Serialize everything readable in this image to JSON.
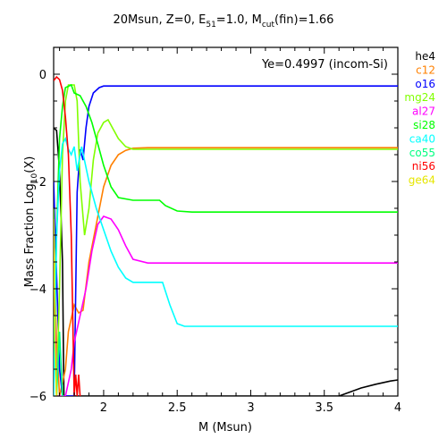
{
  "chart_data": {
    "type": "line",
    "title_main": "20Msun, Z=0, E",
    "title_e_sub": "51",
    "title_mid": "=1.0, M",
    "title_m_sub": "cut",
    "title_end": "(fin)=1.66",
    "annotation": "Ye=0.4997 (incom-Si)",
    "xlabel": "M (Msun)",
    "ylabel_main": "Mass Fraction Log",
    "ylabel_sub": "10",
    "ylabel_end": "(X)",
    "xlim": [
      1.66,
      4.0
    ],
    "ylim": [
      -6.0,
      0.5
    ],
    "x_ticks": [
      2,
      2.5,
      3,
      3.5,
      4
    ],
    "x_tick_labels": [
      "2",
      "2.5",
      "3",
      "3.5",
      "4"
    ],
    "y_ticks": [
      0,
      -2,
      -4,
      -6
    ],
    "y_tick_labels": [
      "0",
      "−2",
      "−4",
      "−6"
    ],
    "grid": false,
    "legend_position": "right",
    "series": [
      {
        "name": "he4",
        "color": "#000000",
        "points": [
          [
            1.66,
            -1.0
          ],
          [
            1.68,
            -1.05
          ],
          [
            1.7,
            -1.8
          ],
          [
            1.72,
            -3.5
          ],
          [
            1.73,
            -6.0
          ],
          [
            3.6,
            -6.0
          ],
          [
            3.65,
            -5.95
          ],
          [
            3.75,
            -5.85
          ],
          [
            3.85,
            -5.78
          ],
          [
            3.95,
            -5.72
          ],
          [
            4.0,
            -5.7
          ]
        ]
      },
      {
        "name": "c12",
        "color": "#ff8000",
        "points": [
          [
            1.66,
            -3.0
          ],
          [
            1.68,
            -5.0
          ],
          [
            1.7,
            -6.0
          ],
          [
            1.74,
            -5.5
          ],
          [
            1.76,
            -4.8
          ],
          [
            1.8,
            -4.3
          ],
          [
            1.83,
            -4.45
          ],
          [
            1.86,
            -4.4
          ],
          [
            1.9,
            -3.5
          ],
          [
            1.95,
            -2.8
          ],
          [
            2.0,
            -2.1
          ],
          [
            2.05,
            -1.7
          ],
          [
            2.1,
            -1.5
          ],
          [
            2.15,
            -1.42
          ],
          [
            2.2,
            -1.38
          ],
          [
            2.3,
            -1.37
          ],
          [
            2.5,
            -1.37
          ],
          [
            3.0,
            -1.37
          ],
          [
            4.0,
            -1.37
          ]
        ]
      },
      {
        "name": "o16",
        "color": "#0000ff",
        "points": [
          [
            1.66,
            -2.0
          ],
          [
            1.7,
            -5.5
          ],
          [
            1.72,
            -6.0
          ],
          [
            1.8,
            -6.0
          ],
          [
            1.82,
            -2.2
          ],
          [
            1.84,
            -1.4
          ],
          [
            1.86,
            -1.6
          ],
          [
            1.88,
            -1.0
          ],
          [
            1.9,
            -0.6
          ],
          [
            1.93,
            -0.35
          ],
          [
            1.97,
            -0.25
          ],
          [
            2.0,
            -0.22
          ],
          [
            2.1,
            -0.22
          ],
          [
            2.5,
            -0.22
          ],
          [
            4.0,
            -0.22
          ]
        ]
      },
      {
        "name": "mg24",
        "color": "#80ff00",
        "points": [
          [
            1.66,
            -2.5
          ],
          [
            1.68,
            -6.0
          ],
          [
            1.7,
            -4.0
          ],
          [
            1.72,
            -1.5
          ],
          [
            1.74,
            -0.5
          ],
          [
            1.76,
            -0.2
          ],
          [
            1.8,
            -0.2
          ],
          [
            1.82,
            -0.5
          ],
          [
            1.84,
            -2.0
          ],
          [
            1.87,
            -3.0
          ],
          [
            1.9,
            -2.5
          ],
          [
            1.93,
            -1.6
          ],
          [
            1.96,
            -1.1
          ],
          [
            2.0,
            -0.9
          ],
          [
            2.03,
            -0.85
          ],
          [
            2.06,
            -1.0
          ],
          [
            2.1,
            -1.2
          ],
          [
            2.15,
            -1.35
          ],
          [
            2.2,
            -1.4
          ],
          [
            2.5,
            -1.4
          ],
          [
            4.0,
            -1.4
          ]
        ]
      },
      {
        "name": "al27",
        "color": "#ff00ff",
        "points": [
          [
            1.66,
            -3.0
          ],
          [
            1.68,
            -6.0
          ],
          [
            1.74,
            -6.0
          ],
          [
            1.78,
            -5.5
          ],
          [
            1.8,
            -5.0
          ],
          [
            1.84,
            -4.5
          ],
          [
            1.88,
            -4.0
          ],
          [
            1.92,
            -3.3
          ],
          [
            1.96,
            -2.8
          ],
          [
            2.0,
            -2.65
          ],
          [
            2.05,
            -2.7
          ],
          [
            2.1,
            -2.9
          ],
          [
            2.15,
            -3.2
          ],
          [
            2.2,
            -3.45
          ],
          [
            2.3,
            -3.52
          ],
          [
            2.5,
            -3.52
          ],
          [
            4.0,
            -3.52
          ]
        ]
      },
      {
        "name": "si28",
        "color": "#00ff00",
        "points": [
          [
            1.66,
            -5.5
          ],
          [
            1.68,
            -3.0
          ],
          [
            1.7,
            -1.2
          ],
          [
            1.72,
            -0.6
          ],
          [
            1.74,
            -0.25
          ],
          [
            1.78,
            -0.2
          ],
          [
            1.8,
            -0.35
          ],
          [
            1.84,
            -0.4
          ],
          [
            1.88,
            -0.6
          ],
          [
            1.92,
            -0.9
          ],
          [
            1.96,
            -1.3
          ],
          [
            2.0,
            -1.7
          ],
          [
            2.05,
            -2.1
          ],
          [
            2.1,
            -2.3
          ],
          [
            2.2,
            -2.35
          ],
          [
            2.38,
            -2.35
          ],
          [
            2.42,
            -2.45
          ],
          [
            2.5,
            -2.55
          ],
          [
            2.6,
            -2.57
          ],
          [
            4.0,
            -2.57
          ]
        ]
      },
      {
        "name": "ca40",
        "color": "#00ffff",
        "points": [
          [
            1.66,
            -6.0
          ],
          [
            1.68,
            -3.0
          ],
          [
            1.7,
            -1.8
          ],
          [
            1.72,
            -1.3
          ],
          [
            1.74,
            -1.2
          ],
          [
            1.76,
            -1.4
          ],
          [
            1.78,
            -1.5
          ],
          [
            1.8,
            -1.35
          ],
          [
            1.82,
            -1.8
          ],
          [
            1.85,
            -1.35
          ],
          [
            1.9,
            -2.0
          ],
          [
            1.95,
            -2.5
          ],
          [
            2.0,
            -2.9
          ],
          [
            2.05,
            -3.3
          ],
          [
            2.1,
            -3.6
          ],
          [
            2.15,
            -3.8
          ],
          [
            2.2,
            -3.88
          ],
          [
            2.3,
            -3.88
          ],
          [
            2.4,
            -3.88
          ],
          [
            2.45,
            -4.3
          ],
          [
            2.5,
            -4.65
          ],
          [
            2.55,
            -4.7
          ],
          [
            4.0,
            -4.7
          ]
        ]
      },
      {
        "name": "co55",
        "color": "#00ff80",
        "points": [
          [
            1.66,
            -4.5
          ],
          [
            1.68,
            -6.0
          ],
          [
            1.7,
            -4.8
          ],
          [
            1.72,
            -6.0
          ]
        ]
      },
      {
        "name": "ni56",
        "color": "#ff0000",
        "points": [
          [
            1.66,
            -0.12
          ],
          [
            1.68,
            -0.05
          ],
          [
            1.7,
            -0.1
          ],
          [
            1.72,
            -0.3
          ],
          [
            1.74,
            -0.8
          ],
          [
            1.76,
            -1.5
          ],
          [
            1.78,
            -3.0
          ],
          [
            1.8,
            -6.0
          ],
          [
            1.81,
            -5.6
          ],
          [
            1.82,
            -6.0
          ],
          [
            1.83,
            -5.6
          ],
          [
            1.84,
            -6.0
          ]
        ]
      },
      {
        "name": "ge64",
        "color": "#e6e600",
        "points": [
          [
            1.66,
            -2.7
          ],
          [
            1.67,
            -5.0
          ],
          [
            1.68,
            -6.0
          ]
        ]
      }
    ]
  }
}
